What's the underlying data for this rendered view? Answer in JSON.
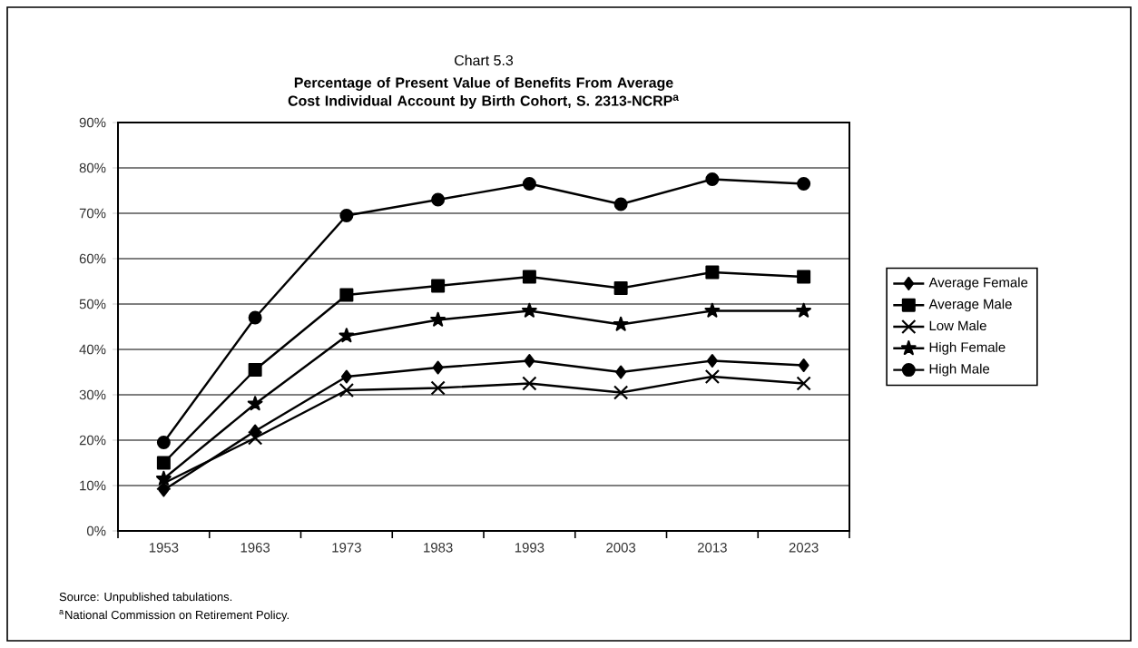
{
  "chart_data": {
    "type": "line",
    "subtitle": "Chart 5.3",
    "title": "Percentage of Present Value of Benefits From Average Cost Individual Account by Birth Cohort, S. 2313-NCRP$^{a}$",
    "categories": [
      "1953",
      "1963",
      "1973",
      "1983",
      "1993",
      "2003",
      "2013",
      "2023"
    ],
    "series": [
      {
        "name": "Average Female",
        "color": "#000000",
        "marker": "diamond",
        "values": [
          9,
          22,
          34,
          36,
          37.5,
          35,
          37.5,
          36.5
        ]
      },
      {
        "name": "Average Male",
        "color": "#000000",
        "marker": "square",
        "values": [
          15,
          35.5,
          52,
          54,
          56,
          53.5,
          57,
          56
        ]
      },
      {
        "name": "Low Male",
        "color": "#000000",
        "marker": "cross",
        "values": [
          10.5,
          20.5,
          31,
          31.5,
          32.5,
          30.5,
          34,
          32.5
        ]
      },
      {
        "name": "High Female",
        "color": "#000000",
        "marker": "star",
        "values": [
          11.5,
          28,
          43,
          46.5,
          48.5,
          45.5,
          48.5,
          48.5
        ]
      },
      {
        "name": "High Male",
        "color": "#000000",
        "marker": "circle",
        "values": [
          19.5,
          47,
          69.5,
          73,
          76.5,
          72,
          77.5,
          76.5
        ]
      }
    ],
    "ylim": [
      0,
      90
    ],
    "yticks": [
      {
        "value": 0,
        "label": "0%"
      },
      {
        "value": 10,
        "label": "10%"
      },
      {
        "value": 20,
        "label": "20%"
      },
      {
        "value": 30,
        "label": "30%"
      },
      {
        "value": 40,
        "label": "40%"
      },
      {
        "value": 50,
        "label": "50%"
      },
      {
        "value": 60,
        "label": "60%"
      },
      {
        "value": 70,
        "label": "70%"
      },
      {
        "value": 80,
        "label": "80%"
      },
      {
        "value": 90,
        "label": "90%"
      }
    ],
    "grid": "y",
    "legend": "right",
    "line_style": "solid",
    "annotations": [
      "Source: Unpublished tabulations.",
      "$^{a}$National Commission on Retirement Policy."
    ]
  }
}
